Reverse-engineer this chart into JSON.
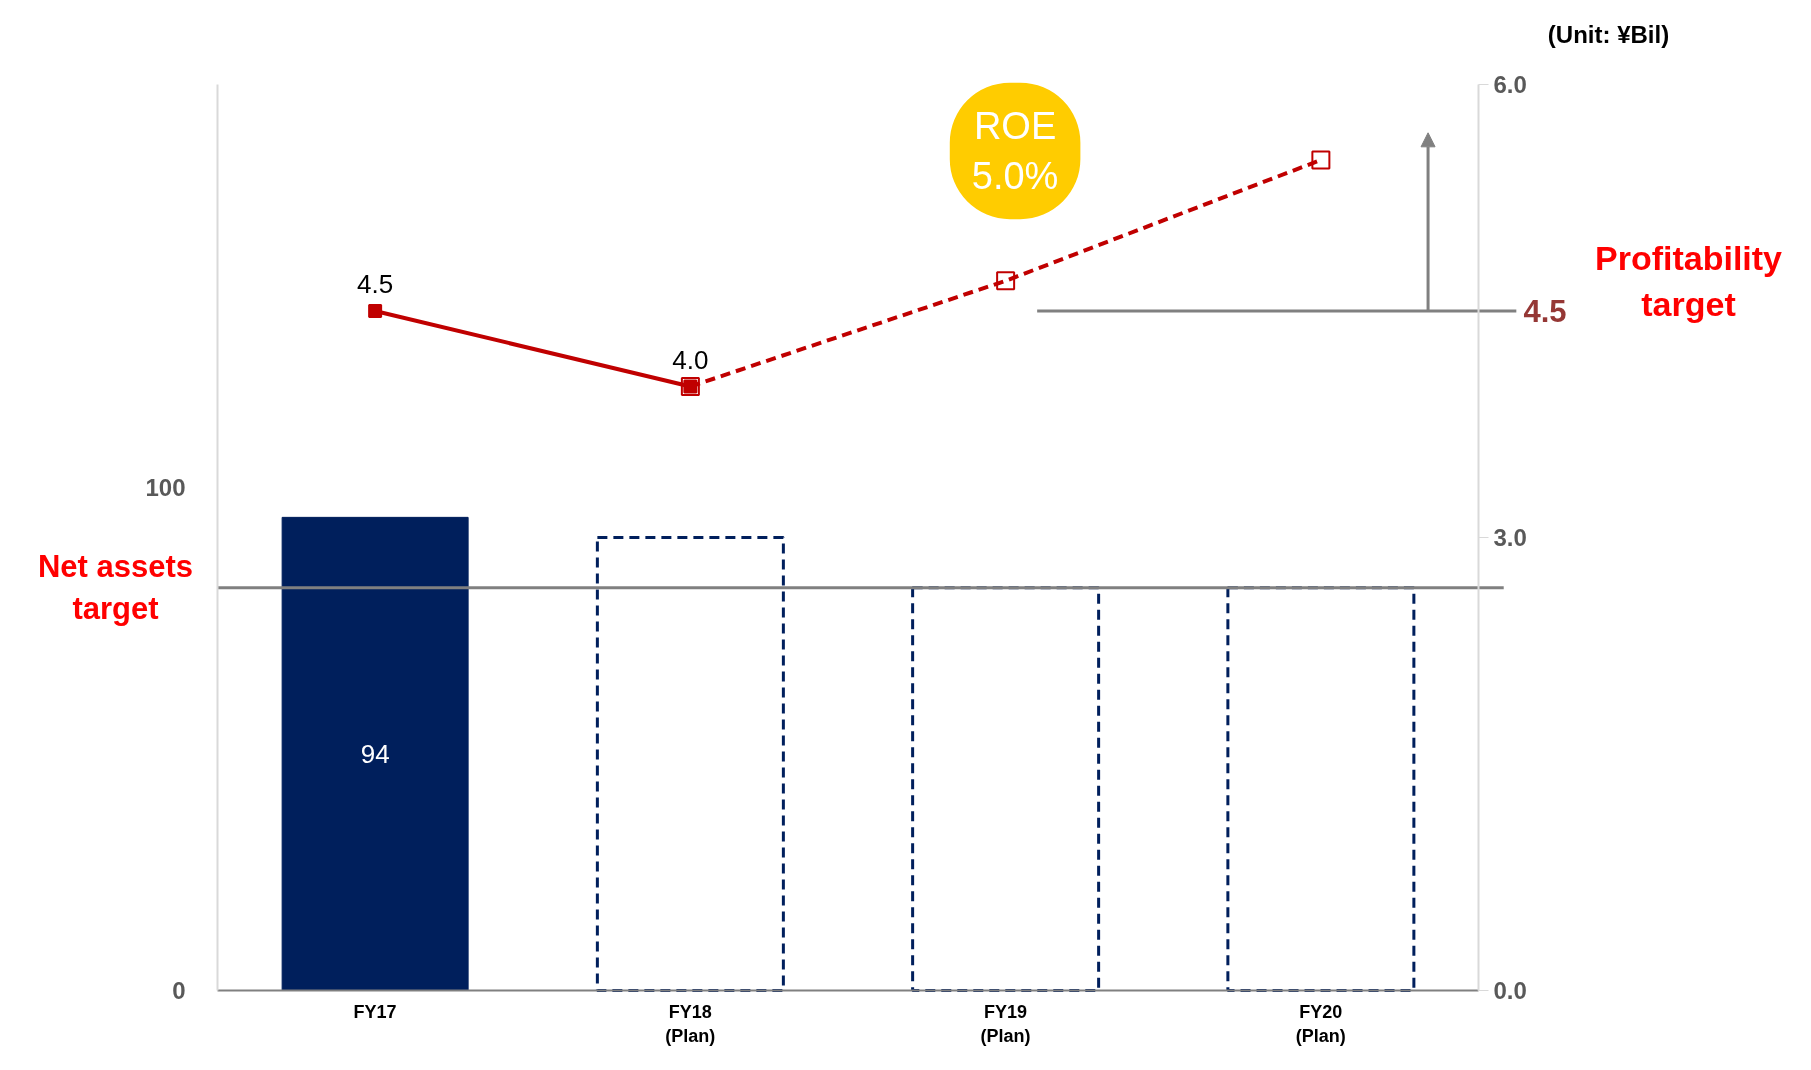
{
  "chart_data": {
    "type": "bar",
    "categories": [
      "FY17",
      "FY18 (Plan)",
      "FY19 (Plan)",
      "FY20 (Plan)"
    ],
    "series": [
      {
        "color": "#001f5c",
        "values": [
          94,
          null,
          null,
          null
        ],
        "value_labels": [
          "94",
          null,
          null,
          null
        ]
      },
      {
        "color": "#001f5c",
        "line_style": "dashed",
        "values": [
          null,
          90,
          80,
          80
        ]
      },
      {
        "type": "line",
        "axis": "y2",
        "color": "#c00000",
        "marker": "square",
        "line_style": "solid",
        "values": [
          4.5,
          4.0,
          null,
          null
        ],
        "value_labels": [
          "4.5",
          "4.0",
          null,
          null
        ]
      },
      {
        "type": "line",
        "axis": "y2",
        "color": "#c00000",
        "marker": "square",
        "line_style": "dashed",
        "values": [
          null,
          4.0,
          4.7,
          5.5
        ]
      }
    ],
    "ylim": [
      0,
      180
    ],
    "yticks": [
      0,
      100
    ],
    "y2lim": [
      0,
      6
    ],
    "y2ticks": [
      {
        "value": 0,
        "label": "0.0"
      },
      {
        "value": 3,
        "label": "3.0"
      },
      {
        "value": 6,
        "label": "6.0"
      }
    ],
    "ref_lines": [
      {
        "axis": "y",
        "value": 80,
        "label": "Net assets target",
        "color": "#808080"
      },
      {
        "axis": "y2",
        "value": 4.5,
        "label": "4.5",
        "color": "#808080"
      }
    ],
    "annotations": [
      "(Unit: ¥Bil)",
      "ROE 5.0%",
      "Profitability target"
    ]
  }
}
